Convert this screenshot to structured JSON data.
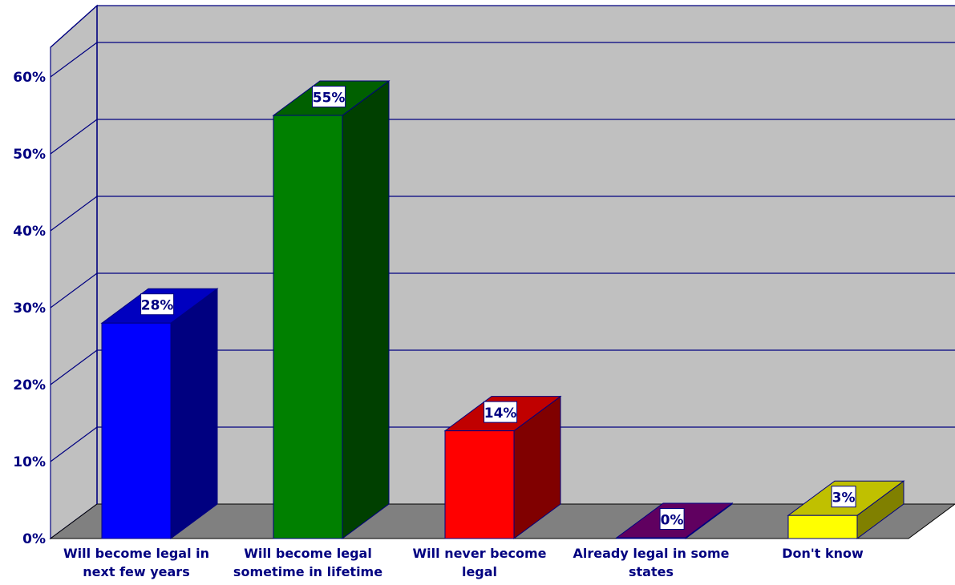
{
  "chart_data": {
    "type": "bar",
    "style": "3d",
    "title": "",
    "xlabel": "",
    "ylabel": "",
    "ylim": [
      0,
      60
    ],
    "ytick_labels": [
      "0%",
      "10%",
      "20%",
      "30%",
      "40%",
      "50%",
      "60%"
    ],
    "grid": true,
    "legend": "none",
    "categories": [
      [
        "Will become legal in",
        "next few years"
      ],
      [
        "Will become legal",
        "sometime in lifetime"
      ],
      [
        "Will never become",
        "legal"
      ],
      [
        "Already legal in some",
        "states"
      ],
      [
        "Don't know"
      ]
    ],
    "values": [
      28,
      55,
      14,
      0,
      3
    ],
    "data_labels": [
      "28%",
      "55%",
      "14%",
      "0%",
      "3%"
    ],
    "colors": {
      "bars": [
        "#0000ff",
        "#008000",
        "#ff0000",
        "#800080",
        "#ffff00"
      ],
      "bar_sides": [
        "#000080",
        "#004000",
        "#800000",
        "#400040",
        "#808000"
      ],
      "bar_tops": [
        "#0000c0",
        "#006000",
        "#c00000",
        "#600060",
        "#c0c000"
      ],
      "wall": "#c0c0c0",
      "floor": "#808080",
      "gridline": "#000080",
      "text": "#000080"
    }
  }
}
